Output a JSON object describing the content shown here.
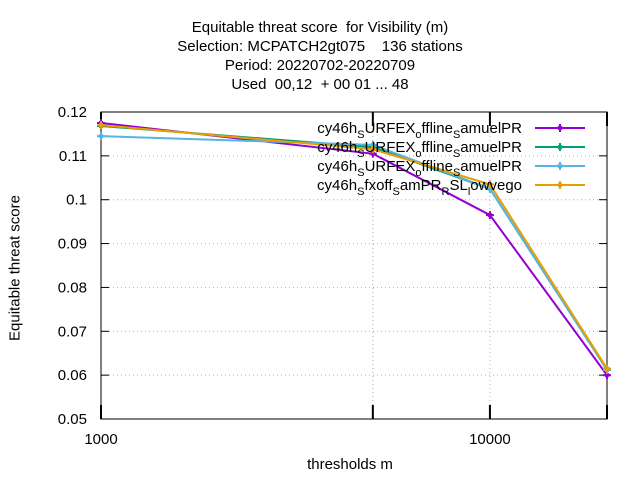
{
  "chart_data": {
    "type": "line",
    "title_lines": [
      "Equitable threat score  for Visibility (m)",
      "Selection: MCPATCH2gt075    136 stations",
      "Period: 20220702-20220709",
      "Used  00,12  + 00 01 ... 48"
    ],
    "xlabel": "thresholds m",
    "ylabel": "Equitable threat score",
    "x_scale": "log",
    "xlim": [
      1000,
      20000
    ],
    "ylim": [
      0.05,
      0.12
    ],
    "x_ticks": [
      1000,
      10000
    ],
    "x_tick_labels": [
      "1000",
      "10000"
    ],
    "y_ticks": [
      0.05,
      0.06,
      0.07,
      0.08,
      0.09,
      0.1,
      0.11,
      0.12
    ],
    "y_tick_labels": [
      "0.05",
      "0.06",
      "0.07",
      "0.08",
      "0.09",
      "0.1",
      "0.11",
      "0.12"
    ],
    "grid": true,
    "legend_position": "top-right",
    "x": [
      1000,
      5000,
      10000,
      20000
    ],
    "series": [
      {
        "legend": {
          "parts": [
            "cy46h",
            "S",
            "URFEX",
            "o",
            "ffline",
            "S",
            "amuelPR"
          ]
        },
        "color": "#9400d3",
        "values": [
          0.1175,
          0.1105,
          0.0965,
          0.06
        ]
      },
      {
        "legend": {
          "parts": [
            "cy46h",
            "S",
            "URFEX",
            "o",
            "ffline",
            "S",
            "amuelPR"
          ]
        },
        "color": "#009e73",
        "values": [
          0.1168,
          0.112,
          0.1025,
          0.0612
        ]
      },
      {
        "legend": {
          "parts": [
            "cy46h",
            "S",
            "URFEX",
            "o",
            "ffline",
            "S",
            "amuelPR"
          ]
        },
        "color": "#56b4e9",
        "values": [
          0.1145,
          0.1125,
          0.1025,
          0.0612
        ]
      },
      {
        "legend": {
          "parts": [
            "cy46h",
            "S",
            "fxoff",
            "S",
            "amPR",
            "R",
            "SL",
            "l",
            "owvego"
          ]
        },
        "color": "#e69f00",
        "values": [
          0.117,
          0.1115,
          0.1035,
          0.0615
        ]
      }
    ]
  }
}
